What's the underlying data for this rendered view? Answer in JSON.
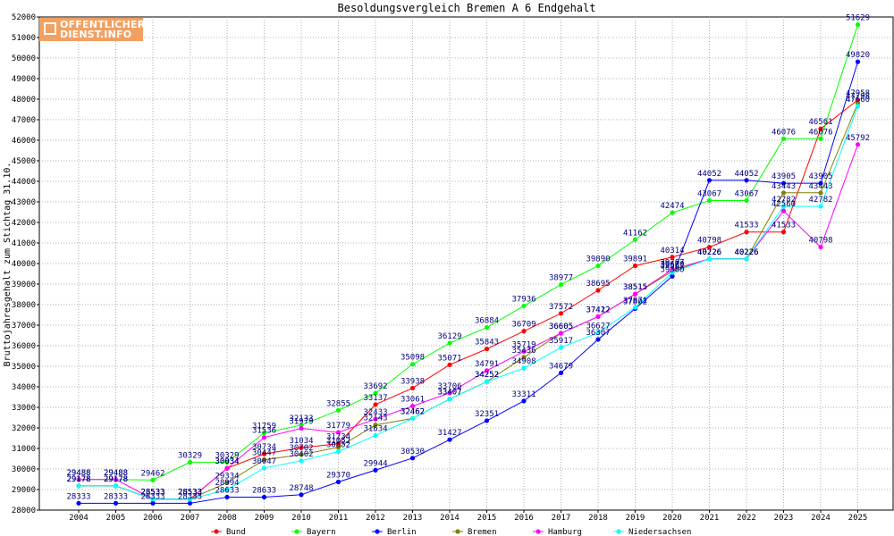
{
  "chart_data": {
    "type": "line",
    "title": "Besoldungsvergleich Bremen A 6 Endgehalt",
    "ylabel": "Bruttojahresgehalt zum Stichtag 31.10.",
    "xlabel": "",
    "x": [
      "2004",
      "2005",
      "2006",
      "2007",
      "2008",
      "2009",
      "2010",
      "2011",
      "2012",
      "2013",
      "2014",
      "2015",
      "2016",
      "2017",
      "2018",
      "2019",
      "2020",
      "2021",
      "2022",
      "2023",
      "2024",
      "2025"
    ],
    "ylim": [
      28000,
      52000
    ],
    "yticks": [
      28000,
      29000,
      30000,
      31000,
      32000,
      33000,
      34000,
      35000,
      36000,
      37000,
      38000,
      39000,
      40000,
      41000,
      42000,
      43000,
      44000,
      45000,
      46000,
      47000,
      48000,
      49000,
      50000,
      51000,
      52000
    ],
    "grid": true,
    "legend_position": "bottom",
    "series": [
      {
        "name": "Bund",
        "color": "#ff0000",
        "values": [
          29178,
          29178,
          28533,
          28533,
          30034,
          30734,
          31034,
          31234,
          33137,
          33938,
          35071,
          35843,
          36709,
          37572,
          38695,
          39891,
          40314,
          40798,
          41533,
          41533,
          46561,
          47958
        ]
      },
      {
        "name": "Bayern",
        "color": "#00ff00",
        "values": [
          29488,
          29488,
          29462,
          30329,
          30329,
          31759,
          32133,
          32855,
          33692,
          35098,
          36129,
          36884,
          37936,
          38977,
          39890,
          41162,
          42474,
          43067,
          43067,
          46076,
          46076,
          51629
        ]
      },
      {
        "name": "Berlin",
        "color": "#0000ff",
        "values": [
          28333,
          28333,
          28333,
          28333,
          28633,
          28633,
          28748,
          29370,
          29944,
          30530,
          31427,
          32351,
          33311,
          34679,
          36307,
          37802,
          39380,
          44052,
          44052,
          43905,
          43905,
          49820
        ]
      },
      {
        "name": "Bremen",
        "color": "#808000",
        "values": [
          29178,
          29178,
          28533,
          28533,
          29334,
          30447,
          30702,
          31052,
          32143,
          32462,
          33407,
          34252,
          35436,
          36605,
          37412,
          38515,
          39620,
          40226,
          40226,
          43443,
          43443,
          47798
        ]
      },
      {
        "name": "Hamburg",
        "color": "#ff00ff",
        "values": [
          29488,
          29488,
          28533,
          28533,
          30034,
          31536,
          31979,
          31779,
          32433,
          33061,
          33706,
          34791,
          35719,
          36605,
          37422,
          38515,
          39707,
          40226,
          40226,
          42560,
          40798,
          45792
        ]
      },
      {
        "name": "Niedersachsen",
        "color": "#00ffff",
        "values": [
          29178,
          29178,
          28533,
          28533,
          28994,
          30047,
          30402,
          30852,
          31634,
          32462,
          33407,
          34252,
          34908,
          35917,
          36627,
          37871,
          39562,
          40226,
          40226,
          42782,
          42782,
          47660
        ]
      }
    ]
  },
  "logo": {
    "line1": "OFFENTLICHER",
    "line2": "DIENST.INFO"
  }
}
